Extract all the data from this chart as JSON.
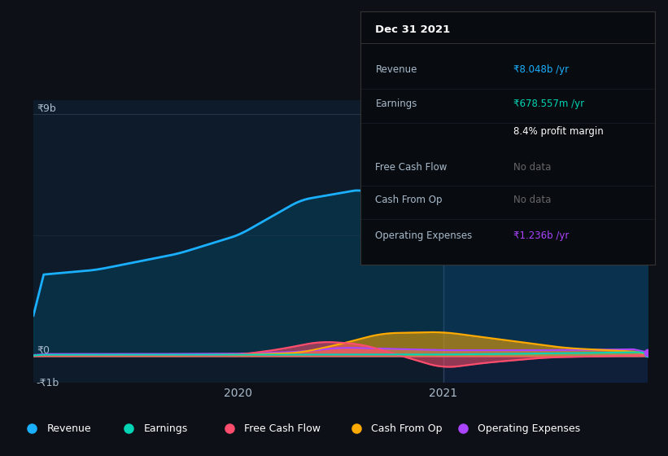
{
  "bg_color": "#0d1117",
  "chart_bg": "#0d1b2a",
  "ylabel_9b": "₹9b",
  "ylabel_0": "₹0",
  "ylabel_neg1b": "-₹1b",
  "tooltip_title": "Dec 31 2021",
  "tooltip_rows": [
    {
      "label": "Revenue",
      "value": "₹8.048b /yr",
      "value_color": "#1ab0ff"
    },
    {
      "label": "Earnings",
      "value": "₹678.557m /yr",
      "value_color": "#00d4b4"
    },
    {
      "label": "",
      "value": "8.4% profit margin",
      "value_color": "#ffffff"
    },
    {
      "label": "Free Cash Flow",
      "value": "No data",
      "value_color": "#666666"
    },
    {
      "label": "Cash From Op",
      "value": "No data",
      "value_color": "#666666"
    },
    {
      "label": "Operating Expenses",
      "value": "₹1.236b /yr",
      "value_color": "#aa44ff"
    }
  ],
  "legend_items": [
    {
      "label": "Revenue",
      "color": "#1ab0ff"
    },
    {
      "label": "Earnings",
      "color": "#00d4b4"
    },
    {
      "label": "Free Cash Flow",
      "color": "#ff4d6d"
    },
    {
      "label": "Cash From Op",
      "color": "#ffaa00"
    },
    {
      "label": "Operating Expenses",
      "color": "#aa44ff"
    }
  ],
  "rev_color": "#1ab0ff",
  "earn_color": "#00d4b4",
  "fcf_color": "#ff4d6d",
  "cfo_color": "#ffaa00",
  "opex_color": "#aa44ff"
}
